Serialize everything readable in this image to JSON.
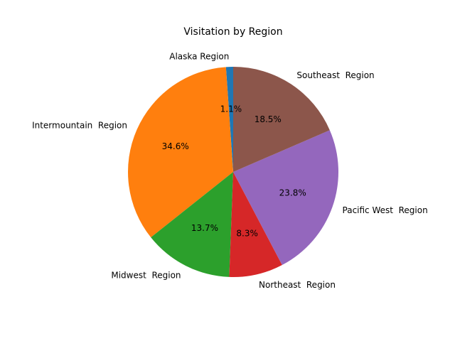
{
  "chart_data": {
    "type": "pie",
    "title": "Visitation by Region",
    "start_angle_deg": 90,
    "direction": "counterclockwise",
    "slices": [
      {
        "label": "Alaska Region",
        "pct_label": "1.1%",
        "value": 1.1,
        "color": "#1f77b4"
      },
      {
        "label": "Intermountain  Region",
        "pct_label": "34.6%",
        "value": 34.6,
        "color": "#ff7f0e"
      },
      {
        "label": "Midwest  Region",
        "pct_label": "13.7%",
        "value": 13.7,
        "color": "#2ca02c"
      },
      {
        "label": "Northeast  Region",
        "pct_label": "8.3%",
        "value": 8.3,
        "color": "#d62728"
      },
      {
        "label": "Pacific West  Region",
        "pct_label": "23.8%",
        "value": 23.8,
        "color": "#9467bd"
      },
      {
        "label": "Southeast  Region",
        "pct_label": "18.5%",
        "value": 18.5,
        "color": "#8c564b"
      }
    ]
  }
}
